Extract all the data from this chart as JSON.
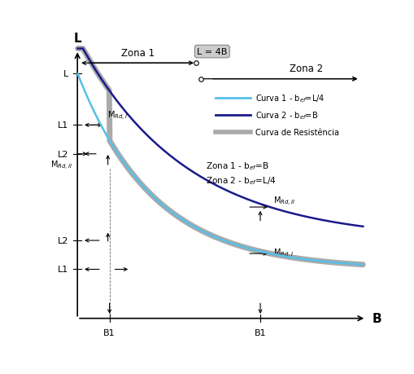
{
  "background_color": "#ffffff",
  "ax_xlabel": "B",
  "ax_ylabel": "L",
  "curve1_color": "#55c0e8",
  "curve2_color": "#1a1a8c",
  "curve_resist_color": "#aaaaaa",
  "zona1_label": "Zona 1",
  "zona2_label": "Zona 2",
  "L_eq_4B_label": "L = 4B",
  "zona_text1": "Zona 1 - b$_{ef}$=B",
  "zona_text2": "Zona 2 - b$_{ef}$=L/4"
}
